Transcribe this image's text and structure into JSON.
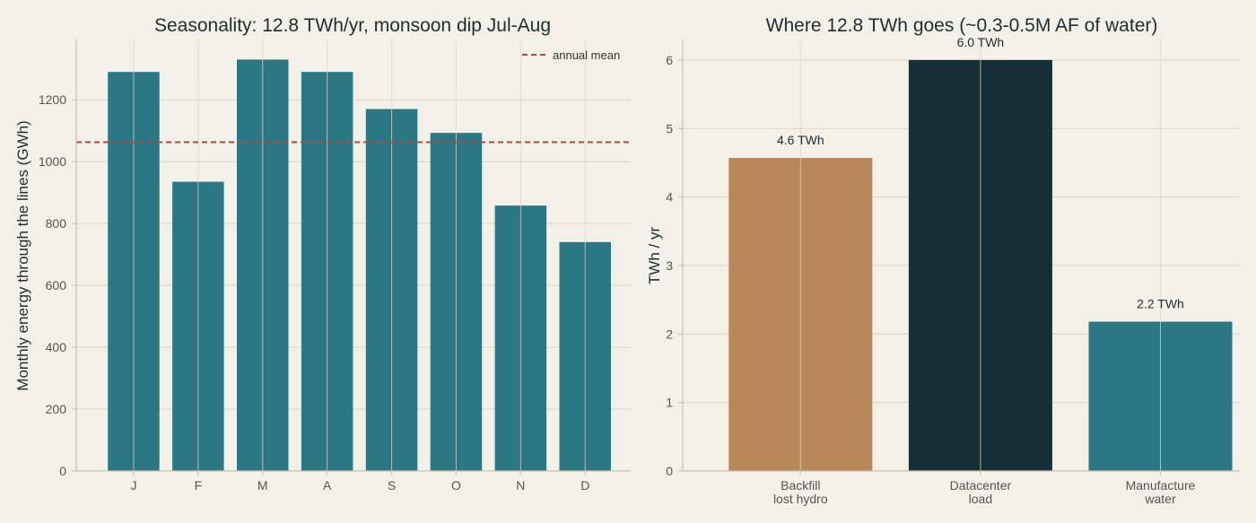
{
  "colors": {
    "background": "#f3f0e7",
    "teal": "#2b7884",
    "tan": "#b98858",
    "dark": "#142f35",
    "mean_line": "#b04a3a",
    "grid": "#dcd6c6"
  },
  "chart_data": [
    {
      "type": "bar",
      "title": "Seasonality: 12.8 TWh/yr, monsoon dip Jul-Aug",
      "xlabel": "",
      "ylabel": "Monthly energy through the lines (GWh)",
      "categories": [
        "J",
        "F",
        "M",
        "A",
        "S",
        "O",
        "N",
        "D"
      ],
      "values": [
        1290,
        935,
        1330,
        1290,
        1170,
        1093,
        858,
        740
      ],
      "ylim": [
        0,
        1395
      ],
      "yticks": [
        0,
        200,
        400,
        600,
        800,
        1000,
        1200
      ],
      "bar_color": "#2b7884",
      "reference_line": {
        "label": "annual mean",
        "value": 1063,
        "color": "#b04a3a",
        "style": "dashed"
      },
      "legend": "top-right",
      "grid": true
    },
    {
      "type": "bar",
      "title": "Where 12.8 TWh goes  (~0.3-0.5M AF of water)",
      "xlabel": "",
      "ylabel": "TWh / yr",
      "categories": [
        [
          "Backfill",
          "lost hydro"
        ],
        [
          "Datacenter",
          "load"
        ],
        [
          "Manufacture",
          "water"
        ]
      ],
      "values": [
        4.57,
        6.0,
        2.18
      ],
      "data_labels": [
        "4.6 TWh",
        "6.0 TWh",
        "2.2 TWh"
      ],
      "bar_colors": [
        "#b98858",
        "#142f35",
        "#2b7884"
      ],
      "ylim": [
        0,
        6.3
      ],
      "yticks": [
        0,
        1,
        2,
        3,
        4,
        5,
        6
      ],
      "grid": true
    }
  ]
}
